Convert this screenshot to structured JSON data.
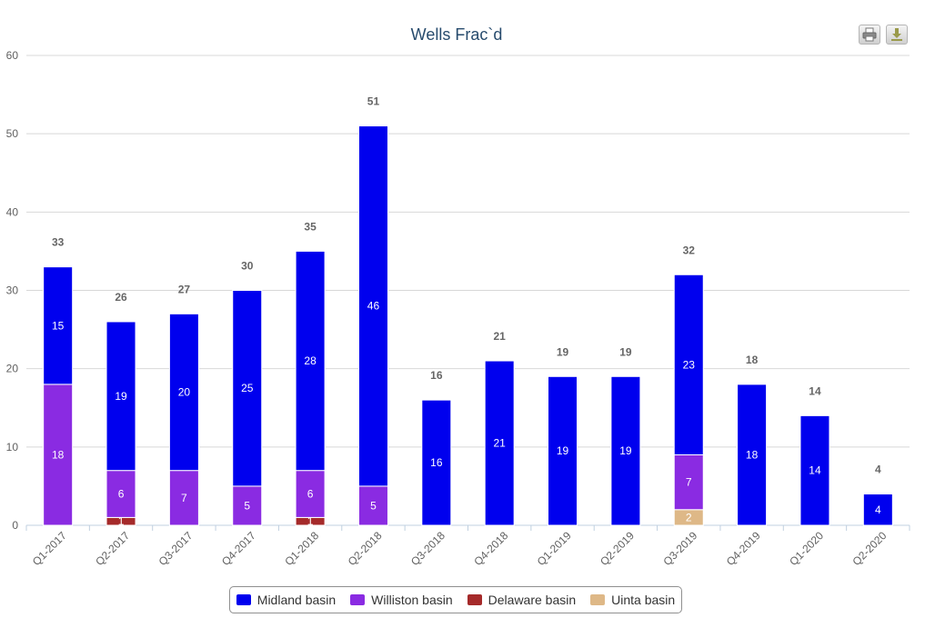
{
  "colors": {
    "Midland basin": "#0000ee",
    "Williston basin": "#8a2be2",
    "Delaware basin": "#a52a2a",
    "Uinta basin": "#deb887"
  },
  "toolbar": {
    "print_icon": "printer-icon",
    "export_icon": "download-icon"
  },
  "chart_data": {
    "type": "bar",
    "stacked": true,
    "title": "Wells Frac`d",
    "xlabel": "",
    "ylabel": "",
    "ylim": [
      0,
      60
    ],
    "yticks": [
      0,
      10,
      20,
      30,
      40,
      50,
      60
    ],
    "grid": true,
    "legend": "bottom-center",
    "categories": [
      "Q1-2017",
      "Q2-2017",
      "Q3-2017",
      "Q4-2017",
      "Q1-2018",
      "Q2-2018",
      "Q3-2018",
      "Q4-2018",
      "Q1-2019",
      "Q2-2019",
      "Q3-2019",
      "Q4-2019",
      "Q1-2020",
      "Q2-2020"
    ],
    "series": [
      {
        "name": "Midland basin",
        "values": [
          15,
          19,
          20,
          25,
          28,
          46,
          16,
          21,
          19,
          19,
          23,
          18,
          14,
          4
        ]
      },
      {
        "name": "Williston basin",
        "values": [
          18,
          6,
          7,
          5,
          6,
          5,
          0,
          0,
          0,
          0,
          7,
          0,
          0,
          0
        ]
      },
      {
        "name": "Delaware basin",
        "values": [
          0,
          1,
          0,
          0,
          1,
          0,
          0,
          0,
          0,
          0,
          0,
          0,
          0,
          0
        ]
      },
      {
        "name": "Uinta basin",
        "values": [
          0,
          0,
          0,
          0,
          0,
          0,
          0,
          0,
          0,
          0,
          2,
          0,
          0,
          0
        ]
      }
    ],
    "totals": [
      33,
      26,
      27,
      30,
      35,
      51,
      16,
      21,
      19,
      19,
      32,
      18,
      14,
      4
    ]
  }
}
